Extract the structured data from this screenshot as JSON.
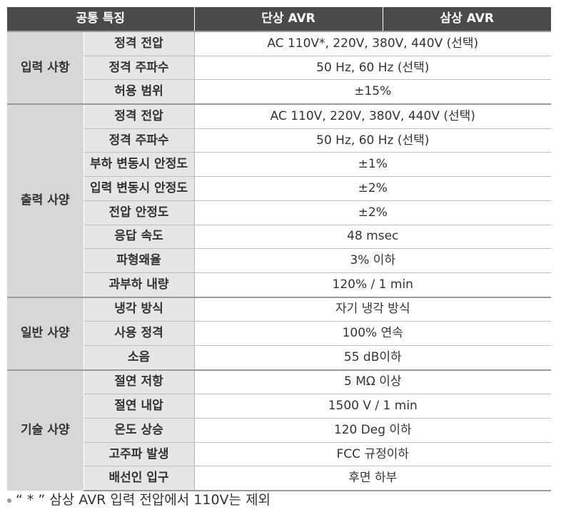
{
  "header": {
    "common": "공통 특징",
    "single": "단상 AVR",
    "three": "삼상 AVR"
  },
  "groups": [
    {
      "name": "입력 사항",
      "rows": [
        {
          "item": "정격 전압",
          "value": "AC 110V*, 220V, 380V, 440V (선택)"
        },
        {
          "item": "정격 주파수",
          "value": "50 Hz, 60 Hz (선택)"
        },
        {
          "item": "허용 범위",
          "value": "±15%"
        }
      ]
    },
    {
      "name": "출력 사양",
      "rows": [
        {
          "item": "정격 전압",
          "value": "AC 110V, 220V, 380V, 440V (선택)"
        },
        {
          "item": "정격 주파수",
          "value": "50 Hz, 60 Hz (선택)"
        },
        {
          "item": "부하 변동시 안정도",
          "value": "±1%"
        },
        {
          "item": "입력 변동시 안정도",
          "value": "±2%"
        },
        {
          "item": "전압 안정도",
          "value": "±2%"
        },
        {
          "item": "응답 속도",
          "value": "48 msec"
        },
        {
          "item": "파형왜율",
          "value": "3% 이하"
        },
        {
          "item": "과부하 내량",
          "value": "120% / 1 min"
        }
      ]
    },
    {
      "name": "일반 사양",
      "rows": [
        {
          "item": "냉각 방식",
          "value": "자기 냉각 방식"
        },
        {
          "item": "사용 정격",
          "value": "100% 연속"
        },
        {
          "item": "소음",
          "value": "55 dB이하"
        }
      ]
    },
    {
      "name": "기술 사양",
      "rows": [
        {
          "item": "절연 저항",
          "value": "5 MΩ 이상"
        },
        {
          "item": "절연 내압",
          "value": "1500 V / 1 min"
        },
        {
          "item": "온도 상승",
          "value": "120 Deg 이하"
        },
        {
          "item": "고주파 발생",
          "value": "FCC 규정이하"
        },
        {
          "item": "배선인 입구",
          "value": "후면 하부"
        }
      ]
    }
  ],
  "note": "“ * ” 삼상 AVR 입력 전압에서 110V는 제외"
}
